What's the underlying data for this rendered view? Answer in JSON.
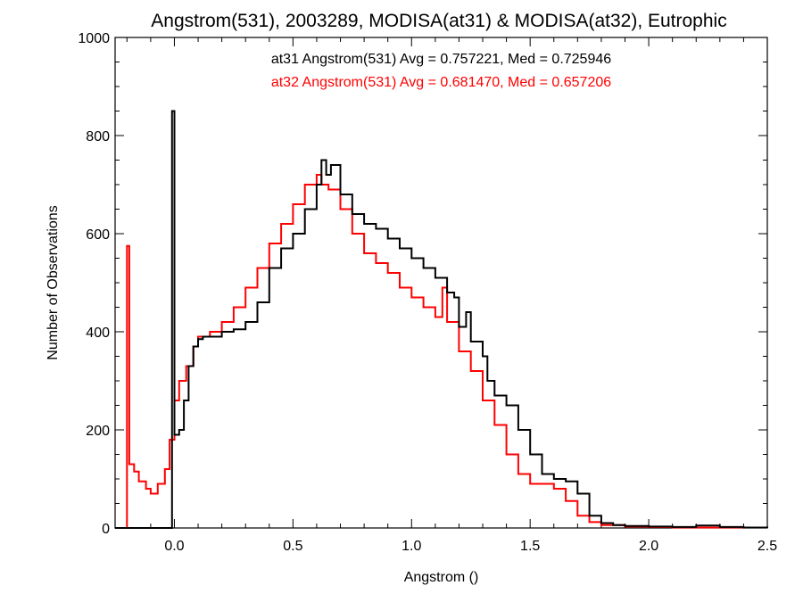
{
  "chart_data": {
    "type": "line",
    "step": true,
    "title": "Angstrom(531), 2003289, MODISA(at31) & MODISA(at32), Eutrophic",
    "xlabel": "Angstrom ()",
    "ylabel": "Number of Observations",
    "xlim": [
      -0.25,
      2.5
    ],
    "ylim": [
      0,
      1000
    ],
    "xticks": [
      "0.0",
      "0.5",
      "1.0",
      "1.5",
      "2.0",
      "2.5"
    ],
    "yticks": [
      "0",
      "200",
      "400",
      "600",
      "800",
      "1000"
    ],
    "grid": false,
    "legend_position": "top-center",
    "series": [
      {
        "name": "at31 Angstrom(531) Avg = 0.757221, Med = 0.725946",
        "color": "#000000",
        "points": [
          [
            -0.25,
            0
          ],
          [
            -0.01,
            0
          ],
          [
            -0.01,
            850
          ],
          [
            0.0,
            850
          ],
          [
            0.0,
            190
          ],
          [
            0.02,
            200
          ],
          [
            0.04,
            260
          ],
          [
            0.06,
            330
          ],
          [
            0.08,
            370
          ],
          [
            0.1,
            385
          ],
          [
            0.12,
            390
          ],
          [
            0.15,
            390
          ],
          [
            0.2,
            400
          ],
          [
            0.25,
            405
          ],
          [
            0.3,
            420
          ],
          [
            0.35,
            460
          ],
          [
            0.4,
            530
          ],
          [
            0.45,
            570
          ],
          [
            0.5,
            600
          ],
          [
            0.55,
            650
          ],
          [
            0.6,
            700
          ],
          [
            0.62,
            750
          ],
          [
            0.64,
            720
          ],
          [
            0.66,
            740
          ],
          [
            0.7,
            680
          ],
          [
            0.75,
            640
          ],
          [
            0.8,
            620
          ],
          [
            0.85,
            610
          ],
          [
            0.9,
            590
          ],
          [
            0.95,
            570
          ],
          [
            1.0,
            550
          ],
          [
            1.05,
            530
          ],
          [
            1.1,
            510
          ],
          [
            1.15,
            480
          ],
          [
            1.18,
            470
          ],
          [
            1.2,
            410
          ],
          [
            1.23,
            440
          ],
          [
            1.25,
            380
          ],
          [
            1.3,
            350
          ],
          [
            1.32,
            300
          ],
          [
            1.35,
            270
          ],
          [
            1.4,
            250
          ],
          [
            1.45,
            200
          ],
          [
            1.5,
            150
          ],
          [
            1.55,
            110
          ],
          [
            1.6,
            100
          ],
          [
            1.65,
            95
          ],
          [
            1.7,
            70
          ],
          [
            1.75,
            25
          ],
          [
            1.8,
            10
          ],
          [
            1.85,
            6
          ],
          [
            1.9,
            4
          ],
          [
            2.0,
            3
          ],
          [
            2.1,
            2
          ],
          [
            2.2,
            5
          ],
          [
            2.3,
            2
          ],
          [
            2.4,
            1
          ],
          [
            2.5,
            0
          ]
        ]
      },
      {
        "name": "at32 Angstrom(531) Avg = 0.681470, Med = 0.657206",
        "color": "#ff0000",
        "points": [
          [
            -0.25,
            0
          ],
          [
            -0.2,
            0
          ],
          [
            -0.2,
            575
          ],
          [
            -0.19,
            575
          ],
          [
            -0.19,
            130
          ],
          [
            -0.17,
            115
          ],
          [
            -0.15,
            95
          ],
          [
            -0.12,
            80
          ],
          [
            -0.1,
            70
          ],
          [
            -0.07,
            90
          ],
          [
            -0.04,
            120
          ],
          [
            -0.02,
            180
          ],
          [
            0.0,
            260
          ],
          [
            0.02,
            300
          ],
          [
            0.05,
            330
          ],
          [
            0.08,
            370
          ],
          [
            0.1,
            390
          ],
          [
            0.15,
            400
          ],
          [
            0.2,
            420
          ],
          [
            0.25,
            450
          ],
          [
            0.3,
            490
          ],
          [
            0.35,
            530
          ],
          [
            0.4,
            580
          ],
          [
            0.45,
            620
          ],
          [
            0.5,
            660
          ],
          [
            0.55,
            700
          ],
          [
            0.6,
            720
          ],
          [
            0.62,
            700
          ],
          [
            0.65,
            690
          ],
          [
            0.7,
            650
          ],
          [
            0.75,
            600
          ],
          [
            0.8,
            560
          ],
          [
            0.85,
            540
          ],
          [
            0.9,
            520
          ],
          [
            0.95,
            490
          ],
          [
            1.0,
            470
          ],
          [
            1.05,
            450
          ],
          [
            1.1,
            430
          ],
          [
            1.13,
            490
          ],
          [
            1.15,
            420
          ],
          [
            1.2,
            360
          ],
          [
            1.25,
            320
          ],
          [
            1.3,
            260
          ],
          [
            1.35,
            210
          ],
          [
            1.4,
            150
          ],
          [
            1.45,
            110
          ],
          [
            1.5,
            90
          ],
          [
            1.55,
            90
          ],
          [
            1.6,
            80
          ],
          [
            1.65,
            55
          ],
          [
            1.7,
            25
          ],
          [
            1.75,
            12
          ],
          [
            1.8,
            6
          ],
          [
            1.9,
            3
          ],
          [
            2.0,
            2
          ],
          [
            2.1,
            1
          ],
          [
            2.2,
            1
          ],
          [
            2.5,
            0
          ]
        ]
      }
    ]
  }
}
